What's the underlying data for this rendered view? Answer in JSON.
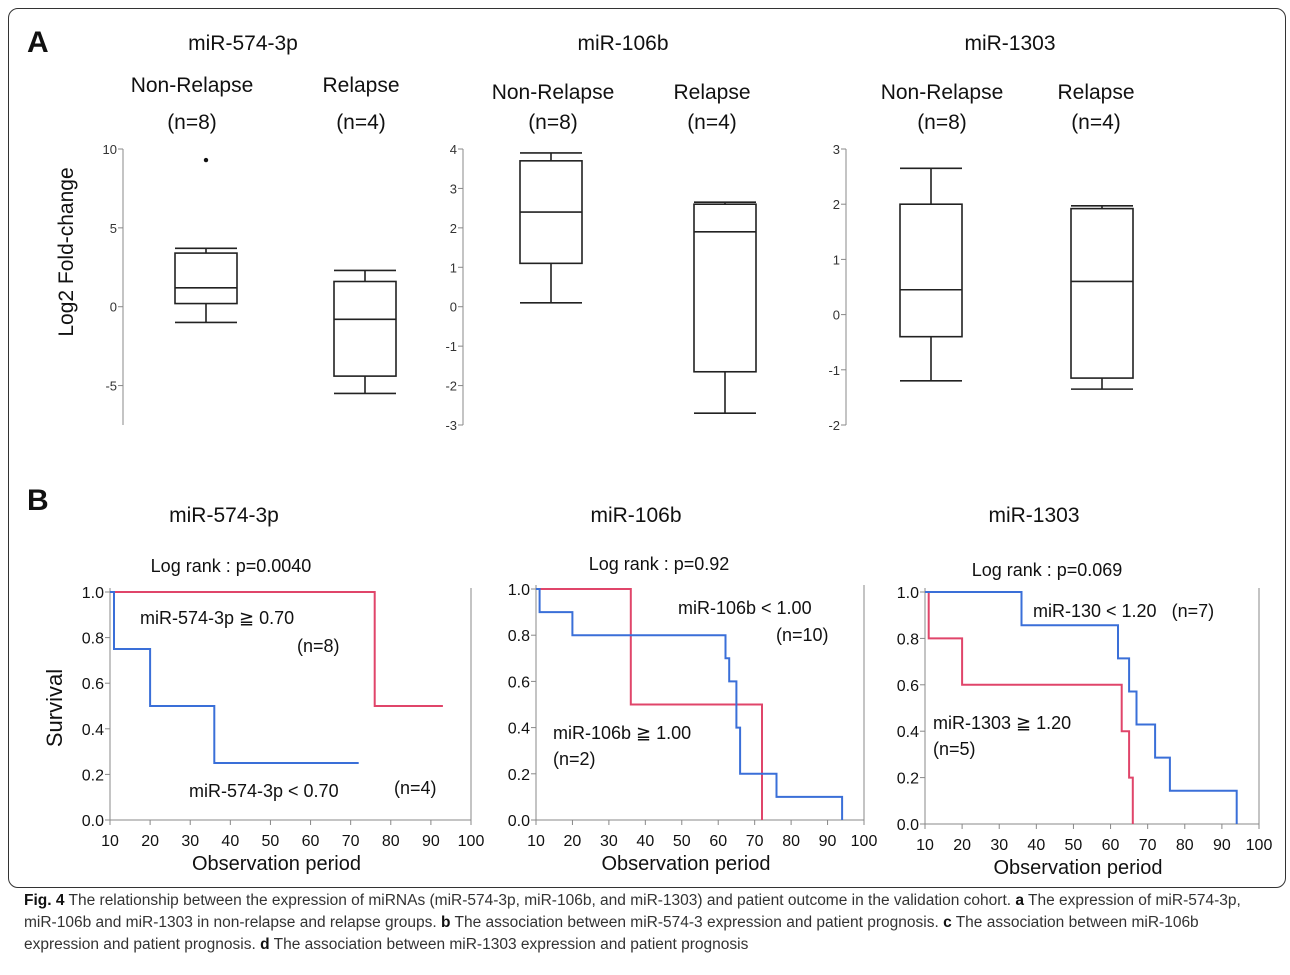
{
  "caption": {
    "fig_label": "Fig. 4",
    "lead": " The relationship between the expression of miRNAs (miR-574-3p, miR-106b, and miR-1303) and patient outcome in the validation cohort. ",
    "a_label": "a",
    "a_text": " The expression of miR-574-3p, miR-106b and miR-1303 in non-relapse and relapse groups. ",
    "b_label": "b",
    "b_text": " The association between miR-574-3 expression and patient prognosis. ",
    "c_label": "c",
    "c_text": " The association between miR-106b expression and patient prognosis. ",
    "d_label": "d",
    "d_text": " The association between miR-1303 expression and patient prognosis"
  },
  "panels": {
    "a": "A",
    "b": "B"
  },
  "chart_data": [
    {
      "type": "box",
      "panel": "A",
      "title": "miR-574-3p",
      "ylabel": "Log2 Fold-change",
      "ylim": [
        -7.5,
        10
      ],
      "yticks": [
        10,
        5,
        0,
        -5
      ],
      "groups": [
        {
          "name": "Non-Relapse",
          "n": "(n=8)",
          "min": -1.0,
          "q1": 0.2,
          "median": 1.2,
          "q3": 3.4,
          "max": 3.7,
          "outliers": [
            9.3
          ]
        },
        {
          "name": "Relapse",
          "n": "(n=4)",
          "min": -5.5,
          "q1": -4.4,
          "median": -0.8,
          "q3": 1.6,
          "max": 2.3,
          "outliers": []
        }
      ]
    },
    {
      "type": "box",
      "panel": "A",
      "title": "miR-106b",
      "ylim": [
        -3,
        4
      ],
      "yticks": [
        4,
        3,
        2,
        1,
        0,
        -1,
        -2,
        -3
      ],
      "groups": [
        {
          "name": "Non-Relapse",
          "n": "(n=8)",
          "min": 0.1,
          "q1": 1.1,
          "median": 2.4,
          "q3": 3.7,
          "max": 3.9,
          "outliers": []
        },
        {
          "name": "Relapse",
          "n": "(n=4)",
          "min": -2.7,
          "q1": -1.65,
          "median": 1.9,
          "q3": 2.6,
          "max": 2.65,
          "outliers": []
        }
      ]
    },
    {
      "type": "box",
      "panel": "A",
      "title": "miR-1303",
      "ylim": [
        -2,
        3
      ],
      "yticks": [
        3,
        2,
        1,
        0,
        -1,
        -2
      ],
      "groups": [
        {
          "name": "Non-Relapse",
          "n": "(n=8)",
          "min": -1.2,
          "q1": -0.4,
          "median": 0.45,
          "q3": 2.0,
          "max": 2.65,
          "outliers": []
        },
        {
          "name": "Relapse",
          "n": "(n=4)",
          "min": -1.35,
          "q1": -1.15,
          "median": 0.6,
          "q3": 1.92,
          "max": 1.97,
          "outliers": []
        }
      ]
    },
    {
      "type": "line",
      "panel": "B",
      "title": "miR-574-3p",
      "subtitle": "Log rank : p=0.0040",
      "xlabel": "Observation period",
      "ylabel": "Survival",
      "xlim": [
        10,
        100
      ],
      "ylim": [
        0,
        1
      ],
      "xticks": [
        10,
        20,
        30,
        40,
        50,
        60,
        70,
        80,
        90,
        100
      ],
      "yticks": [
        "0.0",
        "0.2",
        "0.4",
        "0.6",
        "0.8",
        "1.0"
      ],
      "series": [
        {
          "color": "#e0456a",
          "x": [
            10,
            76,
            76,
            93
          ],
          "y": [
            1.0,
            1.0,
            0.5,
            0.5
          ]
        },
        {
          "color": "#3a6fd8",
          "x": [
            10,
            11,
            11,
            20,
            20,
            36,
            36,
            72
          ],
          "y": [
            1.0,
            1.0,
            0.75,
            0.75,
            0.5,
            0.5,
            0.25,
            0.25
          ]
        }
      ],
      "annotations": [
        "miR-574-3p ≧ 0.70",
        "(n=8)",
        "miR-574-3p < 0.70",
        "(n=4)"
      ]
    },
    {
      "type": "line",
      "panel": "B",
      "title": "miR-106b",
      "subtitle": "Log rank : p=0.92",
      "xlabel": "Observation period",
      "xlim": [
        10,
        100
      ],
      "ylim": [
        0,
        1
      ],
      "xticks": [
        10,
        20,
        30,
        40,
        50,
        60,
        70,
        80,
        90,
        100
      ],
      "yticks": [
        "0.0",
        "0.2",
        "0.4",
        "0.6",
        "0.8",
        "1.0"
      ],
      "series": [
        {
          "color": "#e0456a",
          "x": [
            10,
            36,
            36,
            72,
            72
          ],
          "y": [
            1.0,
            1.0,
            0.5,
            0.5,
            0.0
          ]
        },
        {
          "color": "#3a6fd8",
          "x": [
            10,
            11,
            11,
            20,
            20,
            62,
            62,
            63,
            63,
            65,
            65,
            66,
            66,
            76,
            76,
            94,
            94
          ],
          "y": [
            1.0,
            1.0,
            0.9,
            0.9,
            0.8,
            0.8,
            0.7,
            0.7,
            0.6,
            0.6,
            0.4,
            0.4,
            0.2,
            0.2,
            0.1,
            0.1,
            0.0
          ]
        }
      ],
      "annotations": [
        "miR-106b < 1.00",
        "(n=10)",
        "miR-106b ≧ 1.00",
        "(n=2)"
      ]
    },
    {
      "type": "line",
      "panel": "B",
      "title": "miR-1303",
      "subtitle": "Log rank : p=0.069",
      "xlabel": "Observation period",
      "xlim": [
        10,
        100
      ],
      "ylim": [
        0,
        1
      ],
      "xticks": [
        10,
        20,
        30,
        40,
        50,
        60,
        70,
        80,
        90,
        100
      ],
      "yticks": [
        "0.0",
        "0.2",
        "0.4",
        "0.6",
        "0.8",
        "1.0"
      ],
      "series": [
        {
          "color": "#e0456a",
          "x": [
            10,
            11,
            11,
            20,
            20,
            63,
            63,
            65,
            65,
            66,
            66
          ],
          "y": [
            1.0,
            1.0,
            0.8,
            0.8,
            0.6,
            0.6,
            0.4,
            0.4,
            0.2,
            0.2,
            0.0
          ]
        },
        {
          "color": "#3a6fd8",
          "x": [
            10,
            36,
            36,
            62,
            62,
            65,
            65,
            67,
            67,
            72,
            72,
            76,
            76,
            94,
            94
          ],
          "y": [
            1.0,
            1.0,
            0.857,
            0.857,
            0.714,
            0.714,
            0.571,
            0.571,
            0.429,
            0.429,
            0.286,
            0.286,
            0.143,
            0.143,
            0.0
          ]
        }
      ],
      "annotations": [
        "miR-130 < 1.20   (n=7)",
        "miR-1303 ≧ 1.20",
        "(n=5)"
      ]
    }
  ]
}
